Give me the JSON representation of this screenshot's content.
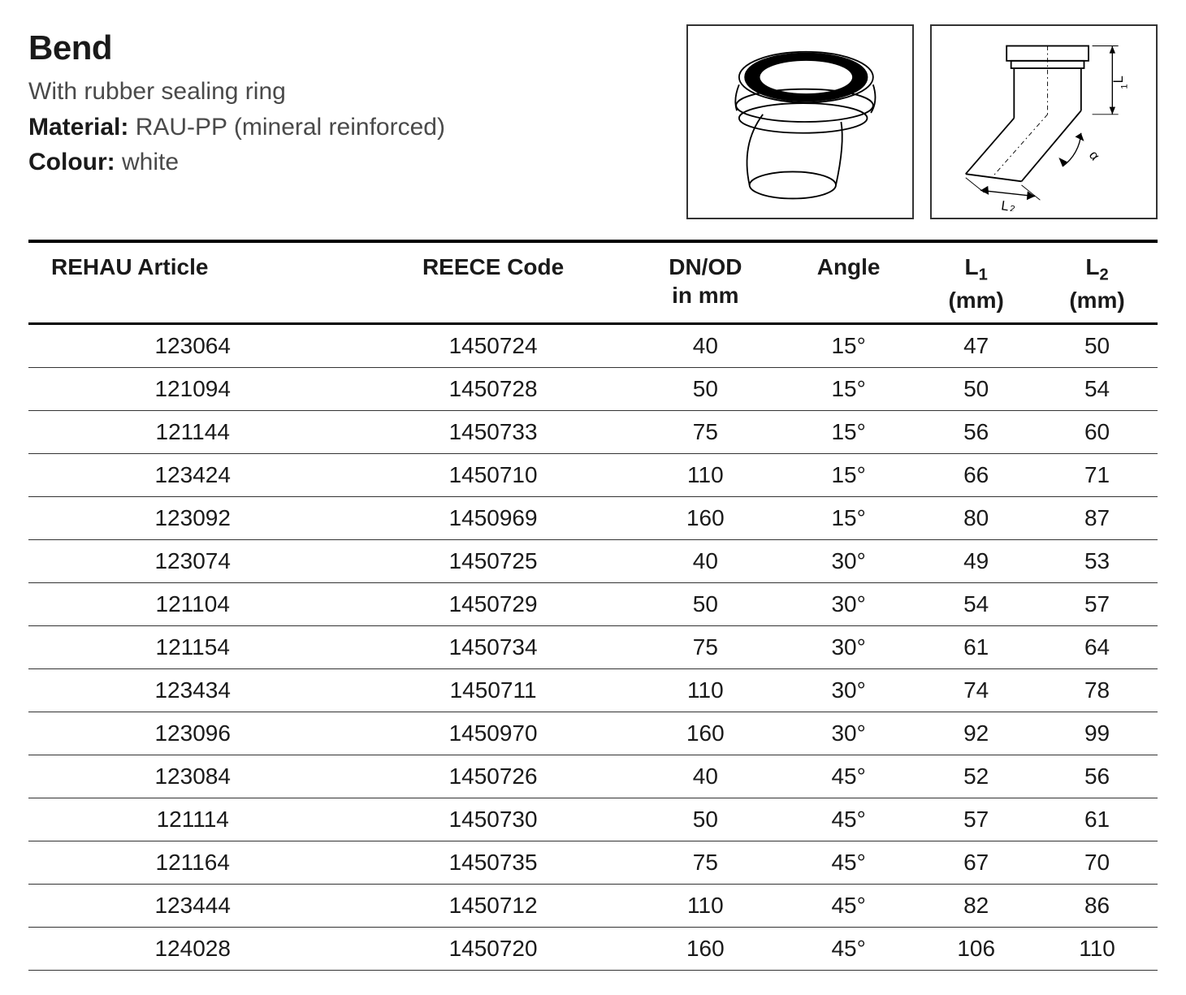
{
  "header": {
    "title": "Bend",
    "subtitle_line1": "With rubber sealing ring",
    "material_label": "Material:",
    "material_value": "RAU-PP (mineral reinforced)",
    "colour_label": "Colour:",
    "colour_value": "white"
  },
  "diagrams": {
    "border_color": "#333333",
    "stroke_color": "#000000",
    "seal_color": "#000000",
    "dim_labels": {
      "l1": "L₁",
      "l2": "L₂",
      "alpha": "α"
    }
  },
  "table": {
    "columns": [
      {
        "key": "rehau",
        "label_line1": "REHAU Article",
        "label_line2": ""
      },
      {
        "key": "reece",
        "label_line1": "REECE Code",
        "label_line2": ""
      },
      {
        "key": "dnod",
        "label_line1": "DN/OD",
        "label_line2": "in mm"
      },
      {
        "key": "angle",
        "label_line1": "Angle",
        "label_line2": ""
      },
      {
        "key": "l1",
        "label_line1": "L₁",
        "label_line2": "(mm)"
      },
      {
        "key": "l2",
        "label_line1": "L₂",
        "label_line2": "(mm)"
      }
    ],
    "rows": [
      [
        "123064",
        "1450724",
        "40",
        "15°",
        "47",
        "50"
      ],
      [
        "121094",
        "1450728",
        "50",
        "15°",
        "50",
        "54"
      ],
      [
        "121144",
        "1450733",
        "75",
        "15°",
        "56",
        "60"
      ],
      [
        "123424",
        "1450710",
        "110",
        "15°",
        "66",
        "71"
      ],
      [
        "123092",
        "1450969",
        "160",
        "15°",
        "80",
        "87"
      ],
      [
        "123074",
        "1450725",
        "40",
        "30°",
        "49",
        "53"
      ],
      [
        "121104",
        "1450729",
        "50",
        "30°",
        "54",
        "57"
      ],
      [
        "121154",
        "1450734",
        "75",
        "30°",
        "61",
        "64"
      ],
      [
        "123434",
        "1450711",
        "110",
        "30°",
        "74",
        "78"
      ],
      [
        "123096",
        "1450970",
        "160",
        "30°",
        "92",
        "99"
      ],
      [
        "123084",
        "1450726",
        "40",
        "45°",
        "52",
        "56"
      ],
      [
        "121114",
        "1450730",
        "50",
        "45°",
        "57",
        "61"
      ],
      [
        "121164",
        "1450735",
        "75",
        "45°",
        "67",
        "70"
      ],
      [
        "123444",
        "1450712",
        "110",
        "45°",
        "82",
        "86"
      ],
      [
        "124028",
        "1450720",
        "160",
        "45°",
        "106",
        "110"
      ]
    ]
  },
  "style": {
    "text_color": "#1a1a1a",
    "muted_color": "#4a4a4a",
    "rule_thick": "4px",
    "rule_med": "3px",
    "rule_thin": "1.5px"
  }
}
